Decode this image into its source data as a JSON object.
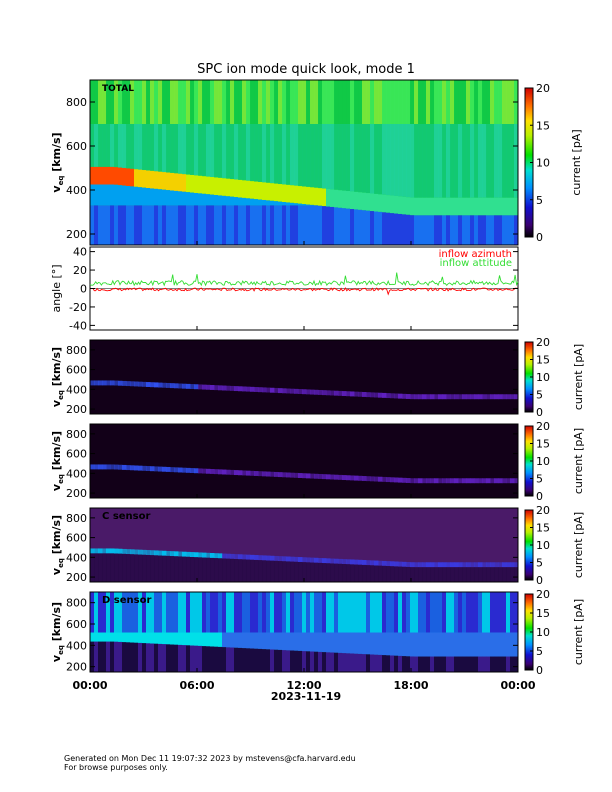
{
  "title": "SPC ion mode quick look, mode 1",
  "footer": {
    "line1": "Generated on Mon Dec 11 19:07:32 2023 by mstevens@cfa.harvard.edu",
    "line2": "For browse purposes only."
  },
  "chart_data": [
    {
      "type": "heatmap",
      "panel": "total",
      "label": "TOTAL",
      "ylabel": "v",
      "ylabel_sub": "eq",
      "ylabel_unit": "[km/s]",
      "ylim": [
        150,
        900
      ],
      "yticks": [
        200,
        400,
        600,
        800
      ],
      "colorbar": {
        "label": "current [pA]",
        "range": [
          0,
          20
        ],
        "ticks": [
          0,
          5,
          10,
          15,
          20
        ]
      },
      "x_domain_hours": [
        0,
        24
      ],
      "description_bands": {
        "proton_core_kms": [
          440,
          490
        ],
        "drift_to_kms": 330
      }
    },
    {
      "type": "line",
      "panel": "angle",
      "ylabel": "angle [°]",
      "ylim": [
        -45,
        45
      ],
      "yticks": [
        -40,
        -20,
        0,
        20,
        40
      ],
      "series": [
        {
          "name": "inflow azimuth",
          "color": "#ff0000",
          "baseline_deg": -1
        },
        {
          "name": "inflow attitude",
          "color": "#33dd33",
          "baseline_deg": 6
        }
      ]
    },
    {
      "type": "heatmap",
      "panel": "sensor-a",
      "label": "",
      "ylabel": "v",
      "ylabel_sub": "eq",
      "ylabel_unit": "[km/s]",
      "ylim": [
        150,
        900
      ],
      "yticks": [
        200,
        400,
        600,
        800
      ],
      "colorbar": {
        "label": "current [pA]",
        "range": [
          0,
          20
        ],
        "ticks": [
          0,
          5,
          10,
          15,
          20
        ]
      }
    },
    {
      "type": "heatmap",
      "panel": "sensor-b",
      "label": "",
      "ylabel": "v",
      "ylabel_sub": "eq",
      "ylabel_unit": "[km/s]",
      "ylim": [
        150,
        900
      ],
      "yticks": [
        200,
        400,
        600,
        800
      ],
      "colorbar": {
        "label": "current [pA]",
        "range": [
          0,
          20
        ],
        "ticks": [
          0,
          5,
          10,
          15,
          20
        ]
      }
    },
    {
      "type": "heatmap",
      "panel": "sensor-c",
      "label": "C sensor",
      "ylabel": "v",
      "ylabel_sub": "eq",
      "ylabel_unit": "[km/s]",
      "ylim": [
        150,
        900
      ],
      "yticks": [
        200,
        400,
        600,
        800
      ],
      "colorbar": {
        "label": "current [pA]",
        "range": [
          0,
          20
        ],
        "ticks": [
          0,
          5,
          10,
          15,
          20
        ]
      }
    },
    {
      "type": "heatmap",
      "panel": "sensor-d",
      "label": "D sensor",
      "ylabel": "v",
      "ylabel_sub": "eq",
      "ylabel_unit": "[km/s]",
      "ylim": [
        150,
        900
      ],
      "yticks": [
        200,
        400,
        600,
        800
      ],
      "colorbar": {
        "label": "current [pA]",
        "range": [
          0,
          20
        ],
        "ticks": [
          0,
          5,
          10,
          15,
          20
        ]
      }
    }
  ],
  "xaxis": {
    "ticks": [
      "00:00",
      "06:00",
      "12:00",
      "18:00",
      "00:00"
    ],
    "date": "2023-11-19"
  }
}
